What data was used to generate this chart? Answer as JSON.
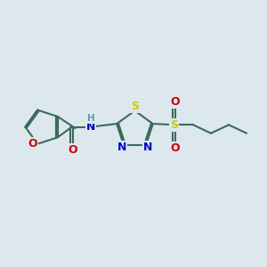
{
  "bg_color": "#dde8ee",
  "bond_color": "#3a6b5a",
  "O_color": "#cc0000",
  "N_color": "#0000cc",
  "S_color": "#cccc00",
  "H_color": "#6699aa",
  "lw": 1.5,
  "fs": 8.5,
  "figsize": [
    3.0,
    3.0
  ],
  "dpi": 100,
  "xlim": [
    0,
    10
  ],
  "ylim": [
    0,
    10
  ]
}
